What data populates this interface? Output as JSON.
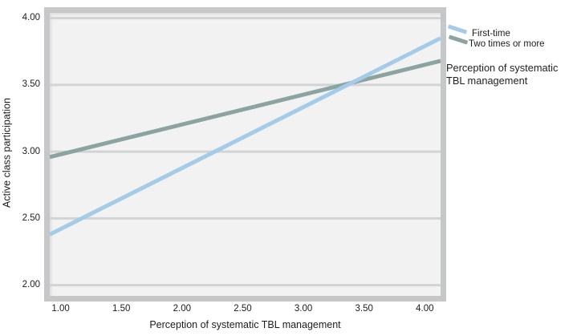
{
  "figure": {
    "background": "#ffffff",
    "plot_background": "#f2f2f2",
    "frame_color": "#c5c7c8",
    "grid_color": "#d1d4d5",
    "text_color": "#1c1c1c"
  },
  "chart_data": {
    "type": "line",
    "xlabel": "Perception of systematic TBL management",
    "ylabel": "Active class participation",
    "xlim": [
      0.91,
      4.13
    ],
    "ylim": [
      1.92,
      4.04
    ],
    "xtick_values": [
      1.0,
      1.5,
      2.0,
      2.5,
      3.0,
      3.5,
      4.0
    ],
    "xtick_labels": [
      "1.00",
      "1.50",
      "2.00",
      "2.50",
      "3.00",
      "3.50",
      "4.00"
    ],
    "ytick_values": [
      2.0,
      2.5,
      3.0,
      3.5,
      4.0
    ],
    "ytick_labels": [
      "2.00",
      "2.50",
      "3.00",
      "3.50",
      "4.00"
    ],
    "grid": "horizontal-only",
    "series": [
      {
        "name": "First-time",
        "color": "#a4cbe8",
        "x": [
          0.91,
          4.13
        ],
        "y": [
          2.38,
          3.85
        ]
      },
      {
        "name": "Two times or more",
        "color": "#8ba3a1",
        "x": [
          0.91,
          4.13
        ],
        "y": [
          2.96,
          3.68
        ]
      }
    ],
    "intersection": {
      "x": 3.4,
      "y": 3.51
    },
    "legend": {
      "position": "top-right-outside",
      "title": "Perception of systematic TBL management"
    }
  }
}
